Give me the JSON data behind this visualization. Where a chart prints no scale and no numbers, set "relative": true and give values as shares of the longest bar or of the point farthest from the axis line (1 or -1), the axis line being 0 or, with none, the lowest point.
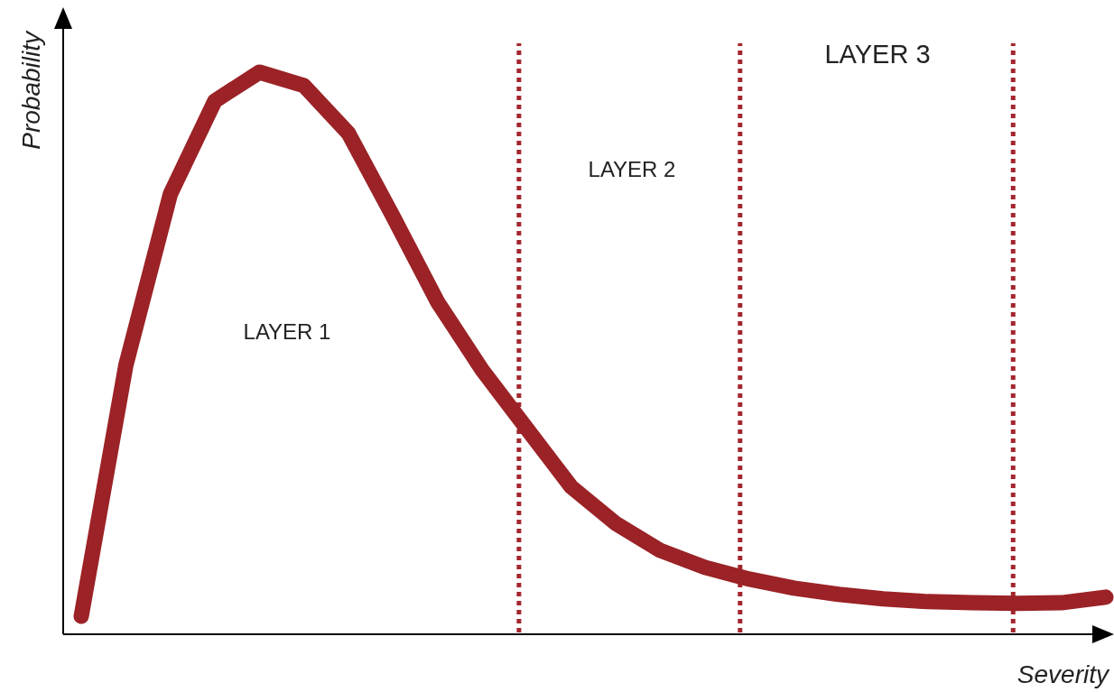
{
  "chart_data": {
    "type": "line",
    "relative": true,
    "xlabel": "Severity",
    "ylabel": "Probability",
    "line_style": "solid",
    "categories": [
      null,
      null,
      null,
      null,
      null,
      null,
      null,
      null,
      null,
      null,
      null,
      null,
      null,
      null,
      null,
      null,
      null,
      null,
      null,
      null,
      null,
      null,
      null,
      null
    ],
    "series": [
      {
        "color": "#9b2226",
        "values": [
          0.032,
          0.478,
          0.783,
          0.949,
          1,
          0.976,
          0.891,
          0.743,
          0.591,
          0.47,
          0.366,
          0.262,
          0.197,
          0.149,
          0.119,
          0.098,
          0.082,
          0.071,
          0.063,
          0.058,
          0.056,
          0.055,
          0.056,
          0.066
        ]
      }
    ],
    "annotations": [
      "LAYER 1",
      "LAYER 2",
      "LAYER 3"
    ]
  }
}
